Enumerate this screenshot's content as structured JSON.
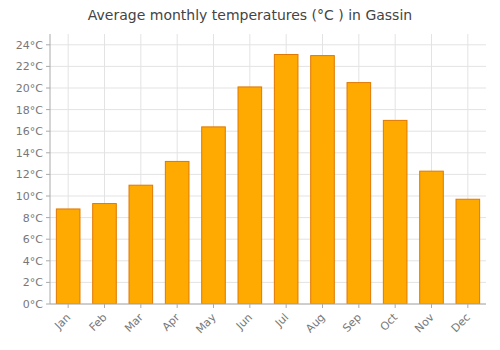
{
  "chart_data": {
    "type": "bar",
    "title": "Average monthly temperatures (°C ) in Gassin",
    "categories": [
      "Jan",
      "Feb",
      "Mar",
      "Apr",
      "May",
      "Jun",
      "Jul",
      "Aug",
      "Sep",
      "Oct",
      "Nov",
      "Dec"
    ],
    "values": [
      8.8,
      9.3,
      11.0,
      13.2,
      16.4,
      20.1,
      23.1,
      23.0,
      20.5,
      17.0,
      12.3,
      9.7
    ],
    "color": "#FFAA00",
    "ylim": [
      0,
      25
    ],
    "yticks": [
      {
        "value": 0,
        "label": "0°C"
      },
      {
        "value": 2,
        "label": "2°C"
      },
      {
        "value": 4,
        "label": "4°C"
      },
      {
        "value": 6,
        "label": "6°C"
      },
      {
        "value": 8,
        "label": "8°C"
      },
      {
        "value": 10,
        "label": "10°C"
      },
      {
        "value": 12,
        "label": "12°C"
      },
      {
        "value": 14,
        "label": "14°C"
      },
      {
        "value": 16,
        "label": "16°C"
      },
      {
        "value": 18,
        "label": "18°C"
      },
      {
        "value": 20,
        "label": "20°C"
      },
      {
        "value": 22,
        "label": "22°C"
      },
      {
        "value": 24,
        "label": "24°C"
      }
    ],
    "grid": true
  }
}
